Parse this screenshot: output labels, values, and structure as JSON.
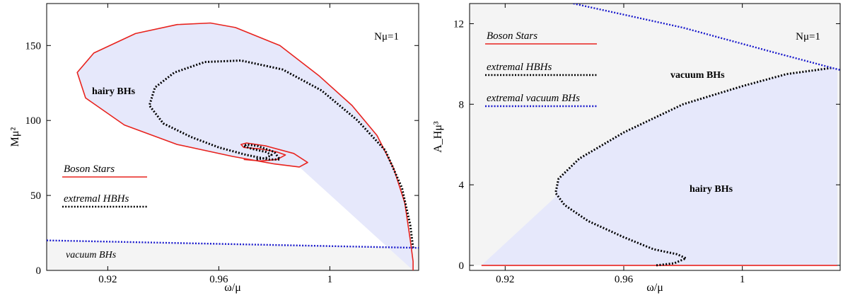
{
  "chart_data": [
    {
      "type": "line",
      "xlabel": "ω/μ",
      "ylabel": "Mμ²",
      "xlim": [
        0.898,
        1.032
      ],
      "ylim": [
        0,
        178
      ],
      "xticks": [
        0.92,
        0.96,
        1
      ],
      "yticks": [
        0,
        50,
        100,
        150
      ],
      "annotation": "Nμ=1",
      "regions": {
        "hairy": "hairy BHs",
        "vacuum": "vacuum BHs"
      },
      "legend": [
        {
          "label": "Boson Stars",
          "color": "#e8231e",
          "dash": "solid"
        },
        {
          "label": "extremal HBHs",
          "color": "#000000",
          "dash": "dotted"
        }
      ],
      "series": [
        {
          "name": "Boson Stars",
          "color": "#e8231e",
          "points": [
            [
              1.03,
              0
            ],
            [
              1.03,
              6
            ],
            [
              1.029,
              20
            ],
            [
              1.027,
              45
            ],
            [
              1.023,
              68
            ],
            [
              1.017,
              90
            ],
            [
              1.008,
              110
            ],
            [
              0.996,
              130
            ],
            [
              0.982,
              150
            ],
            [
              0.966,
              162
            ],
            [
              0.957,
              165
            ],
            [
              0.945,
              164
            ],
            [
              0.93,
              158
            ],
            [
              0.915,
              145
            ],
            [
              0.909,
              132
            ],
            [
              0.912,
              115
            ],
            [
              0.926,
              97
            ],
            [
              0.945,
              84
            ],
            [
              0.965,
              76
            ],
            [
              0.98,
              71
            ],
            [
              0.989,
              69
            ],
            [
              0.992,
              72
            ],
            [
              0.987,
              78
            ],
            [
              0.977,
              83
            ],
            [
              0.97,
              85
            ],
            [
              0.968,
              84
            ],
            [
              0.969,
              82
            ],
            [
              0.975,
              81
            ],
            [
              0.981,
              79
            ],
            [
              0.984,
              77
            ],
            [
              0.981,
              74
            ],
            [
              0.975,
              73
            ],
            [
              0.969,
              74
            ]
          ]
        },
        {
          "name": "extremal HBHs",
          "color": "#000000",
          "points": [
            [
              1.03,
              15
            ],
            [
              1.029,
              30
            ],
            [
              1.026,
              55
            ],
            [
              1.02,
              80
            ],
            [
              1.01,
              100
            ],
            [
              0.997,
              120
            ],
            [
              0.983,
              134
            ],
            [
              0.968,
              140
            ],
            [
              0.955,
              139
            ],
            [
              0.944,
              132
            ],
            [
              0.937,
              122
            ],
            [
              0.935,
              110
            ],
            [
              0.94,
              98
            ],
            [
              0.95,
              89
            ],
            [
              0.96,
              82
            ],
            [
              0.97,
              77
            ],
            [
              0.978,
              74
            ],
            [
              0.982,
              74
            ],
            [
              0.98,
              79
            ],
            [
              0.974,
              83
            ],
            [
              0.97,
              84
            ],
            [
              0.969,
              83
            ],
            [
              0.972,
              81
            ],
            [
              0.977,
              79
            ],
            [
              0.979,
              77
            ],
            [
              0.977,
              75
            ],
            [
              0.973,
              74
            ]
          ]
        },
        {
          "name": "vacuum boundary",
          "color": "#1a1acc",
          "points": [
            [
              0.898,
              20
            ],
            [
              1.032,
              15
            ]
          ]
        }
      ]
    },
    {
      "type": "line",
      "xlabel": "ω/μ",
      "ylabel": "A_Hμ³",
      "xlim": [
        0.908,
        1.033
      ],
      "ylim": [
        -0.25,
        13
      ],
      "xticks": [
        0.92,
        0.96,
        1
      ],
      "yticks": [
        0,
        4,
        8,
        12
      ],
      "annotation": "Nμ=1",
      "regions": {
        "hairy": "hairy BHs",
        "vacuum": "vacuum BHs"
      },
      "legend": [
        {
          "label": "Boson Stars",
          "color": "#e8231e",
          "dash": "solid"
        },
        {
          "label": "extremal HBHs",
          "color": "#000000",
          "dash": "dotted"
        },
        {
          "label": "extremal vacuum BHs",
          "color": "#1a1acc",
          "dash": "dotted"
        }
      ],
      "series": [
        {
          "name": "Boson Stars",
          "color": "#e8231e",
          "points": [
            [
              0.912,
              0
            ],
            [
              1.032,
              0
            ]
          ]
        },
        {
          "name": "extremal HBHs",
          "color": "#000000",
          "points": [
            [
              0.971,
              0
            ],
            [
              0.977,
              0.1
            ],
            [
              0.981,
              0.35
            ],
            [
              0.978,
              0.55
            ],
            [
              0.97,
              0.8
            ],
            [
              0.96,
              1.4
            ],
            [
              0.948,
              2.2
            ],
            [
              0.94,
              3.0
            ],
            [
              0.937,
              3.6
            ],
            [
              0.938,
              4.3
            ],
            [
              0.945,
              5.3
            ],
            [
              0.96,
              6.6
            ],
            [
              0.98,
              8.0
            ],
            [
              1.0,
              8.9
            ],
            [
              1.015,
              9.5
            ],
            [
              1.03,
              9.8
            ]
          ]
        },
        {
          "name": "extremal vacuum BHs",
          "color": "#1a1acc",
          "points": [
            [
              0.943,
              13
            ],
            [
              0.98,
              11.8
            ],
            [
              1.01,
              10.6
            ],
            [
              1.033,
              9.7
            ]
          ]
        }
      ]
    }
  ]
}
